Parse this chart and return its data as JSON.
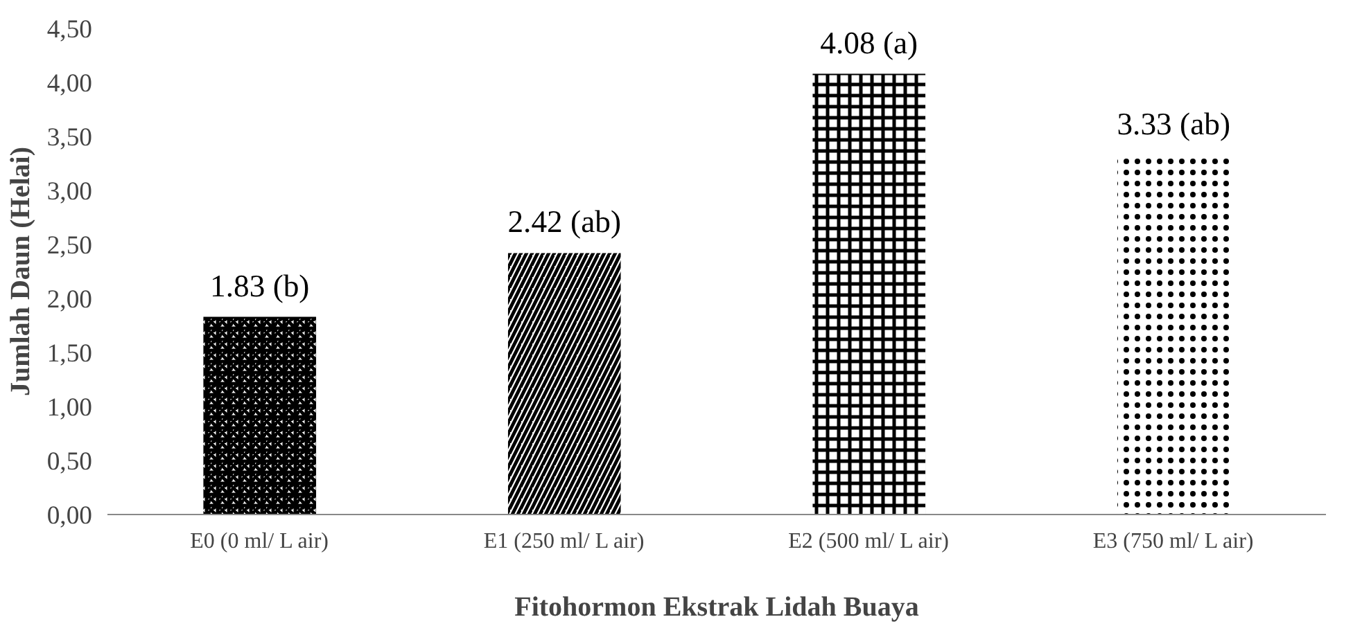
{
  "chart_data": {
    "type": "bar",
    "ylabel": "Jumlah Daun (Helai)",
    "xlabel": "Fitohormon Ekstrak Lidah Buaya",
    "categories": [
      "E0 (0 ml/ L air)",
      "E1 (250 ml/ L air)",
      "E2 (500 ml/ L air)",
      "E3 (750 ml/ L air)"
    ],
    "values": [
      1.83,
      2.42,
      4.08,
      3.33
    ],
    "value_labels": [
      "1.83 (b)",
      "2.42 (ab)",
      "4.08 (a)",
      "3.33 (ab)"
    ],
    "colors": [
      "#000000",
      "#000000",
      "#000000",
      "#000000"
    ],
    "ylim": [
      0,
      4.5
    ],
    "yticks": [
      {
        "value": 0,
        "label": "0,00"
      },
      {
        "value": 0.5,
        "label": "0,50"
      },
      {
        "value": 1,
        "label": "1,00"
      },
      {
        "value": 1.5,
        "label": "1,50"
      },
      {
        "value": 2,
        "label": "2,00"
      },
      {
        "value": 2.5,
        "label": "2,50"
      },
      {
        "value": 3,
        "label": "3,00"
      },
      {
        "value": 3.5,
        "label": "3,50"
      },
      {
        "value": 4,
        "label": "4,00"
      },
      {
        "value": 4.5,
        "label": "4,50"
      }
    ],
    "grid": false
  }
}
